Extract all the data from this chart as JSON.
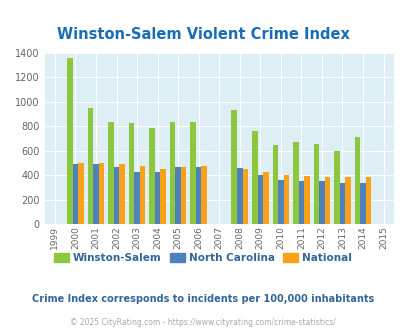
{
  "title": "Winston-Salem Violent Crime Index",
  "all_years": [
    1999,
    2000,
    2001,
    2002,
    2003,
    2004,
    2005,
    2006,
    2007,
    2008,
    2009,
    2010,
    2011,
    2012,
    2013,
    2014,
    2015
  ],
  "data_years": [
    2000,
    2001,
    2002,
    2003,
    2004,
    2005,
    2006,
    2008,
    2009,
    2010,
    2011,
    2012,
    2013,
    2014
  ],
  "winston_salem": [
    1360,
    950,
    835,
    830,
    790,
    835,
    835,
    930,
    760,
    645,
    670,
    660,
    600,
    710
  ],
  "north_carolina": [
    495,
    490,
    465,
    430,
    430,
    465,
    465,
    460,
    405,
    360,
    350,
    350,
    340,
    335
  ],
  "national": [
    505,
    505,
    495,
    475,
    455,
    465,
    475,
    455,
    425,
    405,
    395,
    390,
    390,
    385
  ],
  "ws_color": "#8dc63f",
  "nc_color": "#4f81bd",
  "nat_color": "#f9a11b",
  "bg_color": "#ddeef5",
  "title_color": "#1a6db5",
  "legend_color": "#336699",
  "footer_color": "#aaaaaa",
  "tick_color": "#666666",
  "ylim": [
    0,
    1400
  ],
  "yticks": [
    0,
    200,
    400,
    600,
    800,
    1000,
    1200,
    1400
  ],
  "subtitle": "Crime Index corresponds to incidents per 100,000 inhabitants",
  "footer": "© 2025 CityRating.com - https://www.cityrating.com/crime-statistics/",
  "bar_width": 0.27,
  "figsize": [
    4.06,
    3.3
  ],
  "dpi": 100
}
